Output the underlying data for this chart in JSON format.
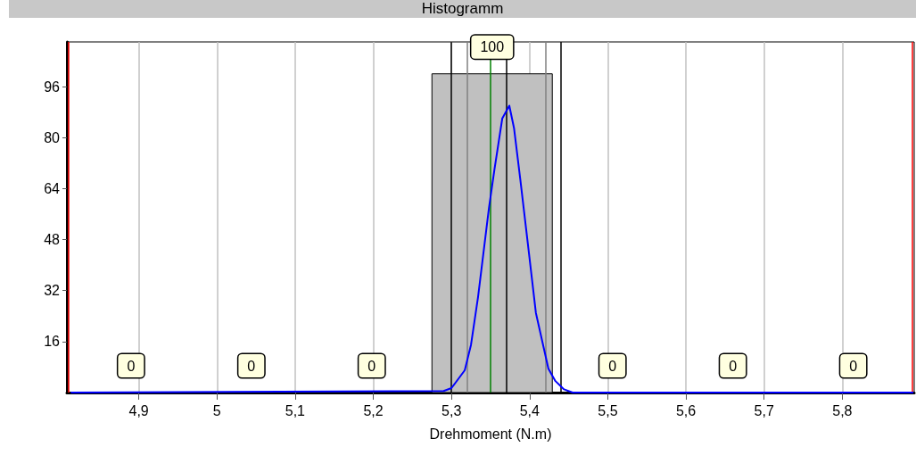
{
  "chart_data": {
    "type": "histogram",
    "title": "Histogramm",
    "xlabel": "Drehmoment (N.m)",
    "bins": [
      4.813,
      4.967,
      5.121,
      5.275,
      5.429,
      5.583,
      5.737,
      5.891
    ],
    "values": [
      0,
      0,
      0,
      100,
      0,
      0,
      0
    ],
    "color": "#c0c0c0",
    "value_labels": [
      "0",
      "0",
      "0",
      "100",
      "0",
      "0",
      "0"
    ],
    "series": [
      {
        "type": "line",
        "color": "#0000ff",
        "x": [
          4.813,
          5.29,
          5.3,
          5.317,
          5.325,
          5.334,
          5.348,
          5.355,
          5.365,
          5.374,
          5.38,
          5.388,
          5.399,
          5.408,
          5.424,
          5.433,
          5.444,
          5.455,
          5.891
        ],
        "values": [
          0,
          0.5,
          1.4,
          7,
          15,
          30,
          58,
          70,
          86,
          90,
          83,
          67,
          44,
          25,
          7.5,
          3.6,
          1,
          0,
          0
        ]
      }
    ],
    "ref_lines": [
      {
        "axis": "x",
        "value": 4.813,
        "color": "#ff0000"
      },
      {
        "axis": "x",
        "value": 5.891,
        "color": "#ff0000"
      },
      {
        "axis": "x",
        "value": 5.3,
        "color": "#000000"
      },
      {
        "axis": "x",
        "value": 5.372,
        "color": "#000000"
      },
      {
        "axis": "x",
        "value": 5.444,
        "color": "#000000"
      },
      {
        "axis": "x",
        "value": 5.318,
        "color": "#808080"
      },
      {
        "axis": "x",
        "value": 5.424,
        "color": "#808080"
      },
      {
        "axis": "x",
        "value": 5.349,
        "color": "#008000"
      }
    ],
    "xlim": [
      4.808,
      5.892
    ],
    "xticks": [
      {
        "value": 4.9,
        "label": "4,9"
      },
      5,
      {
        "value": 5.1,
        "label": "5,1"
      },
      {
        "value": 5.2,
        "label": "5,2"
      },
      {
        "value": 5.3,
        "label": "5,3"
      },
      {
        "value": 5.4,
        "label": "5,4"
      },
      {
        "value": 5.5,
        "label": "5,5"
      },
      {
        "value": 5.6,
        "label": "5,6"
      },
      {
        "value": 5.7,
        "label": "5,7"
      },
      {
        "value": 5.8,
        "label": "5,8"
      }
    ],
    "ylim": [
      0,
      110
    ],
    "yticks": [
      16,
      32,
      48,
      64,
      80,
      96
    ],
    "grid": "x",
    "marker": "none"
  }
}
